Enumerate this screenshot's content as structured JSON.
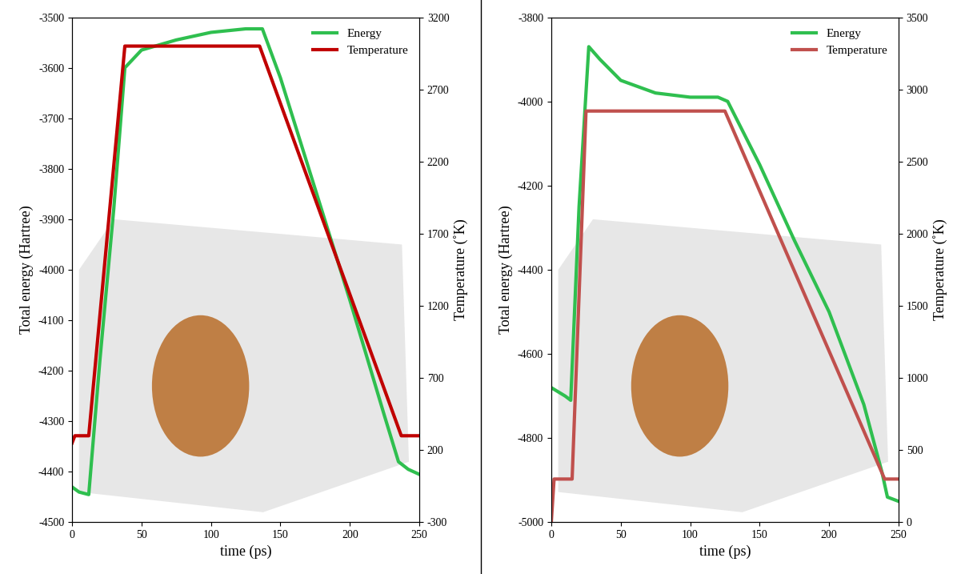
{
  "chart_data": [
    {
      "type": "line",
      "x_label": "time (ps)",
      "y_label": "Total energy (Hartree)",
      "y2_label": "Temperature (˚K)",
      "xlim": [
        0,
        250
      ],
      "xticks": [
        0,
        50,
        100,
        150,
        200,
        250
      ],
      "ylim": [
        -4500,
        -3500
      ],
      "yticks": [
        -4500,
        -4400,
        -4300,
        -4200,
        -4100,
        -4000,
        -3900,
        -3800,
        -3700,
        -3600,
        -3500
      ],
      "y2lim": [
        -300,
        3200
      ],
      "y2ticks": [
        -300,
        200,
        700,
        1200,
        1700,
        2200,
        2700,
        3200
      ],
      "legend": "upper right",
      "grid": false,
      "series": [
        {
          "name": "Energy",
          "color": "#2fbf4f",
          "x": [
            0,
            5,
            12,
            20,
            30,
            38,
            50,
            75,
            100,
            125,
            137,
            150,
            175,
            200,
            225,
            235,
            242,
            250
          ],
          "values": [
            -4430,
            -4440,
            -4445,
            -4180,
            -3880,
            -3600,
            -3565,
            -3545,
            -3530,
            -3523,
            -3523,
            -3620,
            -3840,
            -4060,
            -4290,
            -4380,
            -4395,
            -4405
          ]
        },
        {
          "name": "Temperature",
          "color": "#c00000",
          "axis": "y2",
          "x": [
            0,
            2,
            12,
            38,
            135,
            237,
            250
          ],
          "values": [
            250,
            300,
            300,
            3000,
            3000,
            300,
            300
          ]
        }
      ]
    },
    {
      "type": "line",
      "x_label": "time (ps)",
      "y_label": "Total energy (Hartree)",
      "y2_label": "Temperature (˚K)",
      "xlim": [
        0,
        250
      ],
      "xticks": [
        0,
        50,
        100,
        150,
        200,
        250
      ],
      "ylim": [
        -5000,
        -3800
      ],
      "yticks": [
        -5000,
        -4800,
        -4600,
        -4400,
        -4200,
        -4000,
        -3800
      ],
      "y2lim": [
        0,
        3500
      ],
      "y2ticks": [
        0,
        500,
        1000,
        1500,
        2000,
        2500,
        3000,
        3500
      ],
      "legend": "upper right",
      "grid": false,
      "series": [
        {
          "name": "Energy",
          "color": "#2fbf4f",
          "x": [
            0,
            10,
            14,
            20,
            27,
            35,
            50,
            75,
            100,
            120,
            127,
            150,
            175,
            200,
            225,
            238,
            242,
            250
          ],
          "values": [
            -4680,
            -4700,
            -4710,
            -4250,
            -3870,
            -3900,
            -3950,
            -3980,
            -3990,
            -3990,
            -4000,
            -4150,
            -4330,
            -4500,
            -4720,
            -4880,
            -4940,
            -4950
          ]
        },
        {
          "name": "Temperature",
          "color": "#c0504d",
          "axis": "y2",
          "x": [
            0,
            2,
            15,
            25,
            125,
            240,
            250
          ],
          "values": [
            0,
            300,
            300,
            2850,
            2850,
            300,
            300
          ]
        }
      ]
    }
  ]
}
